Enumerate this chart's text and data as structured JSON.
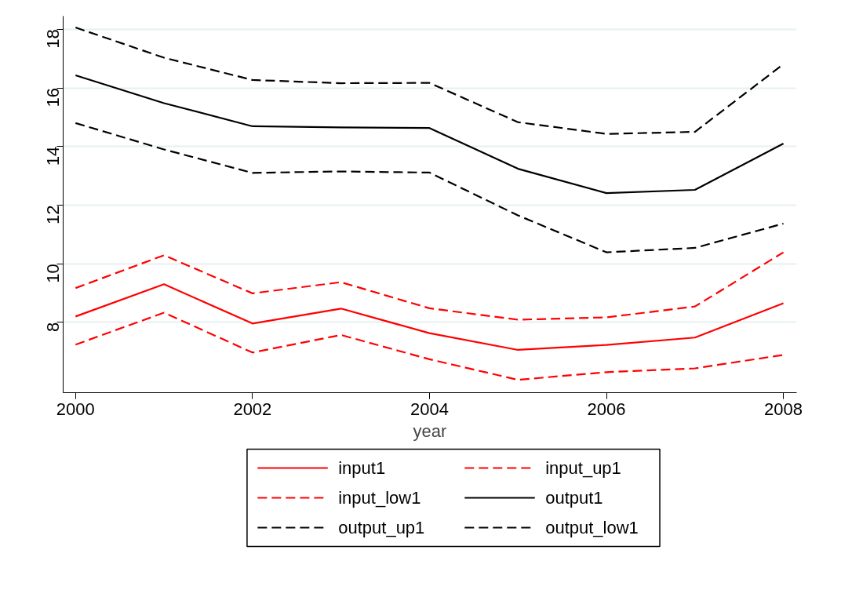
{
  "chart_data": {
    "type": "line",
    "xlabel": "year",
    "x": [
      2000,
      2001,
      2002,
      2003,
      2004,
      2005,
      2006,
      2007,
      2008
    ],
    "series": [
      {
        "name": "input1",
        "color": "#ff0000",
        "line_style": "solid",
        "values": [
          8.2,
          9.3,
          7.96,
          8.47,
          7.63,
          7.06,
          7.23,
          7.48,
          8.65
        ]
      },
      {
        "name": "input_up1",
        "color": "#ff0000",
        "line_style": "dashed",
        "values": [
          9.17,
          10.29,
          8.99,
          9.37,
          8.48,
          8.09,
          8.17,
          8.54,
          10.39
        ]
      },
      {
        "name": "input_low1",
        "color": "#ff0000",
        "line_style": "dashed",
        "values": [
          7.24,
          8.33,
          6.97,
          7.57,
          6.74,
          6.04,
          6.3,
          6.43,
          6.89
        ]
      },
      {
        "name": "output1",
        "color": "#000000",
        "line_style": "solid",
        "values": [
          16.43,
          15.48,
          14.69,
          14.65,
          14.63,
          13.24,
          12.41,
          12.52,
          14.1
        ]
      },
      {
        "name": "output_up1",
        "color": "#000000",
        "line_style": "dashed",
        "values": [
          18.06,
          17.03,
          16.27,
          16.16,
          16.17,
          14.83,
          14.43,
          14.5,
          16.81
        ]
      },
      {
        "name": "output_low1",
        "color": "#000000",
        "line_style": "dashed",
        "values": [
          14.8,
          13.9,
          13.1,
          13.15,
          13.11,
          11.65,
          10.39,
          10.54,
          11.37
        ]
      }
    ],
    "xlim": [
      1999.86,
      2008.15
    ],
    "ylim": [
      5.6,
      18.45
    ],
    "xticks": [
      2000,
      2002,
      2004,
      2006,
      2008
    ],
    "yticks": [
      8,
      10,
      12,
      14,
      16,
      18
    ],
    "grid": "y",
    "legend": "bottom"
  }
}
